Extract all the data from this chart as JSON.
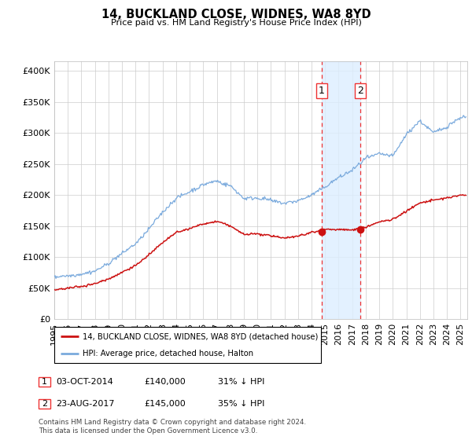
{
  "title": "14, BUCKLAND CLOSE, WIDNES, WA8 8YD",
  "subtitle": "Price paid vs. HM Land Registry's House Price Index (HPI)",
  "yticks": [
    0,
    50000,
    100000,
    150000,
    200000,
    250000,
    300000,
    350000,
    400000
  ],
  "ylim": [
    0,
    415000
  ],
  "xlim_start": 1995.0,
  "xlim_end": 2025.5,
  "transaction1_date": 2014.75,
  "transaction2_date": 2017.62,
  "transaction1_price": 140000,
  "transaction2_price": 145000,
  "transaction1_text": "03-OCT-2014",
  "transaction2_text": "23-AUG-2017",
  "transaction1_pct": "31% ↓ HPI",
  "transaction2_pct": "35% ↓ HPI",
  "legend_line1": "14, BUCKLAND CLOSE, WIDNES, WA8 8YD (detached house)",
  "legend_line2": "HPI: Average price, detached house, Halton",
  "footer": "Contains HM Land Registry data © Crown copyright and database right 2024.\nThis data is licensed under the Open Government Licence v3.0.",
  "hpi_color": "#7aaadd",
  "price_color": "#cc1111",
  "shade_color": "#ddeeff",
  "vline_color": "#ee3333",
  "grid_color": "#cccccc",
  "hpi_knots_x": [
    1995,
    1996,
    1997,
    1998,
    1999,
    2000,
    2001,
    2002,
    2003,
    2004,
    2005,
    2006,
    2007,
    2008,
    2009,
    2010,
    2011,
    2012,
    2013,
    2014,
    2015,
    2016,
    2017,
    2018,
    2019,
    2020,
    2021,
    2022,
    2023,
    2024,
    2025
  ],
  "hpi_knots_y": [
    67000,
    70000,
    74000,
    80000,
    92000,
    108000,
    124000,
    148000,
    175000,
    198000,
    208000,
    218000,
    225000,
    215000,
    195000,
    196000,
    192000,
    188000,
    192000,
    200000,
    212000,
    228000,
    240000,
    258000,
    265000,
    262000,
    295000,
    318000,
    300000,
    310000,
    325000
  ],
  "red_knots_x": [
    1995,
    1996,
    1997,
    1998,
    1999,
    2000,
    2001,
    2002,
    2003,
    2004,
    2005,
    2006,
    2007,
    2008,
    2009,
    2010,
    2011,
    2012,
    2013,
    2014,
    2015,
    2016,
    2017,
    2018,
    2019,
    2020,
    2021,
    2022,
    2023,
    2024,
    2025
  ],
  "red_knots_y": [
    47000,
    49000,
    52000,
    56000,
    64000,
    75000,
    86000,
    103000,
    122000,
    138000,
    145000,
    152000,
    157000,
    150000,
    136000,
    137000,
    134000,
    131000,
    134000,
    140000,
    145000,
    145000,
    145000,
    150000,
    158000,
    162000,
    175000,
    188000,
    192000,
    196000,
    200000
  ]
}
